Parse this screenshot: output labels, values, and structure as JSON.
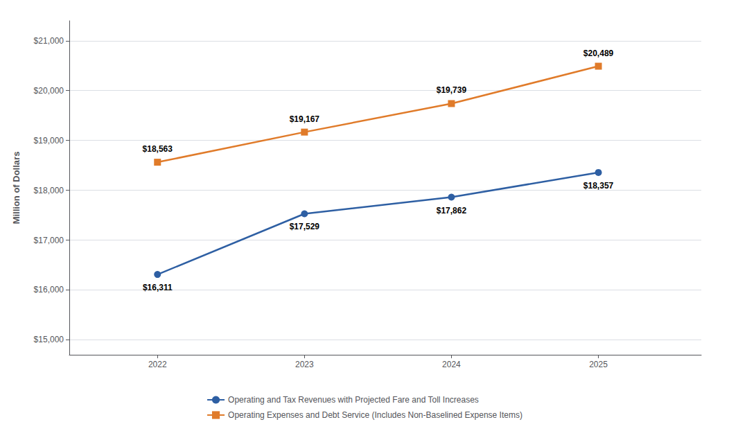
{
  "chart_data": {
    "type": "line",
    "x": [
      2022,
      2023,
      2024,
      2025
    ],
    "xlim": [
      2021.4,
      2025.7
    ],
    "xticks": [
      2022,
      2023,
      2024,
      2025
    ],
    "ylabel": "Million of Dollars",
    "ylim": [
      14700,
      21400
    ],
    "yticks": [
      {
        "value": 15000,
        "label": "$15,000"
      },
      {
        "value": 16000,
        "label": "$16,000"
      },
      {
        "value": 17000,
        "label": "$17,000"
      },
      {
        "value": 18000,
        "label": "$18,000"
      },
      {
        "value": 19000,
        "label": "$19,000"
      },
      {
        "value": 20000,
        "label": "$20,000"
      },
      {
        "value": 21000,
        "label": "$21,000"
      }
    ],
    "grid": true,
    "legend": "bottom",
    "data_labels": true,
    "series": [
      {
        "name": "Operating and Tax Revenues with Projected Fare and Toll Increases",
        "color": "#2e5fa3",
        "marker": "circle",
        "values": [
          16311,
          17529,
          17862,
          18357
        ],
        "value_labels": [
          "$16,311",
          "$17,529",
          "$17,862",
          "$18,357"
        ]
      },
      {
        "name": "Operating Expenses and Debt Service (Includes Non-Baselined Expense Items)",
        "color": "#e07b2a",
        "marker": "square",
        "values": [
          18563,
          19167,
          19739,
          20489
        ],
        "value_labels": [
          "$18,563",
          "$19,167",
          "$19,739",
          "$20,489"
        ]
      }
    ]
  }
}
